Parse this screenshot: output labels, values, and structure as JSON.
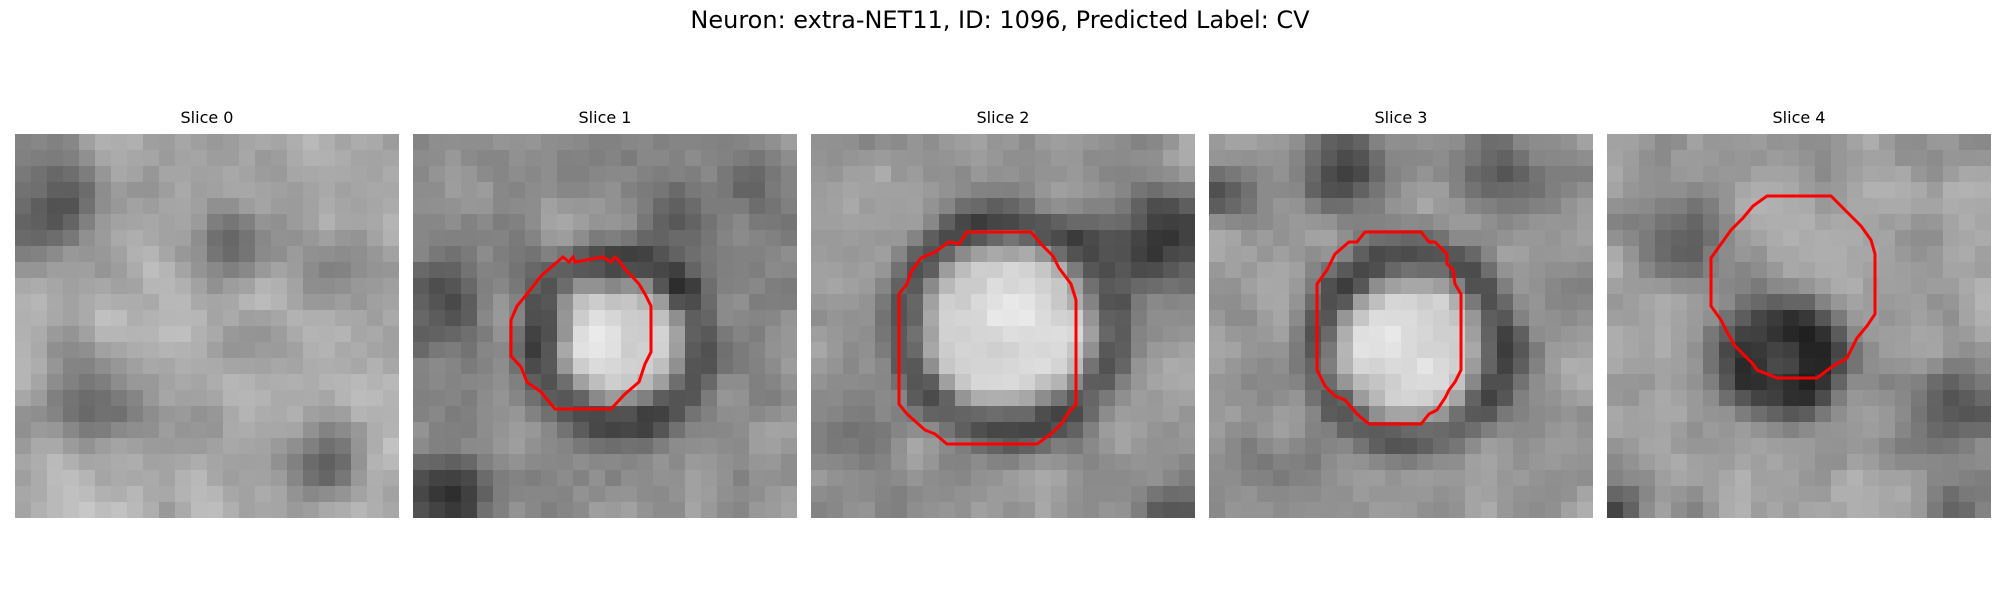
{
  "figure": {
    "title": "Neuron: extra-NET11, ID: 1096, Predicted Label: CV"
  },
  "slices": [
    {
      "label": "Slice 0",
      "outline_color": "#ff0000",
      "has_outline": false
    },
    {
      "label": "Slice 1",
      "outline_color": "#ff0000",
      "has_outline": true
    },
    {
      "label": "Slice 2",
      "outline_color": "#ff0000",
      "has_outline": true
    },
    {
      "label": "Slice 3",
      "outline_color": "#ff0000",
      "has_outline": true
    },
    {
      "label": "Slice 4",
      "outline_color": "#ff0000",
      "has_outline": true
    }
  ],
  "colors": {
    "colormap": "grayscale",
    "outline": "#ff0000"
  }
}
